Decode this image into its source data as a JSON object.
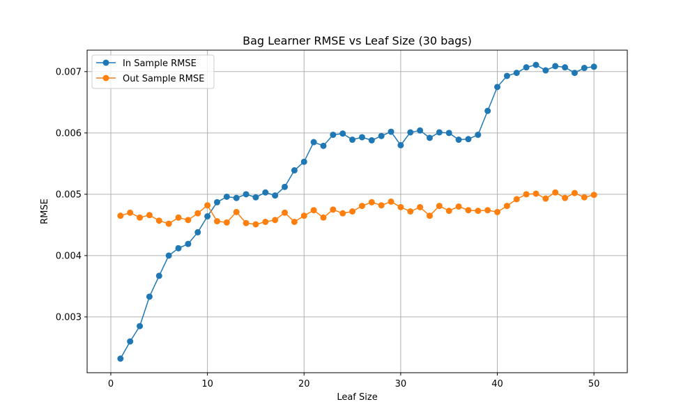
{
  "chart_data": {
    "type": "line",
    "title": "Bag Learner RMSE vs Leaf Size (30 bags)",
    "xlabel": "Leaf Size",
    "ylabel": "RMSE",
    "xlim": [
      -2.45,
      53.45
    ],
    "ylim": [
      0.00209,
      0.00735
    ],
    "xticks": [
      0,
      10,
      20,
      30,
      40,
      50
    ],
    "xtick_labels": [
      "0",
      "10",
      "20",
      "30",
      "40",
      "50"
    ],
    "yticks": [
      0.003,
      0.004,
      0.005,
      0.006,
      0.007
    ],
    "ytick_labels": [
      "0.003",
      "0.004",
      "0.005",
      "0.006",
      "0.007"
    ],
    "grid": true,
    "legend": "upper-left",
    "x": [
      1,
      2,
      3,
      4,
      5,
      6,
      7,
      8,
      9,
      10,
      11,
      12,
      13,
      14,
      15,
      16,
      17,
      18,
      19,
      20,
      21,
      22,
      23,
      24,
      25,
      26,
      27,
      28,
      29,
      30,
      31,
      32,
      33,
      34,
      35,
      36,
      37,
      38,
      39,
      40,
      41,
      42,
      43,
      44,
      45,
      46,
      47,
      48,
      49,
      50
    ],
    "series": [
      {
        "name": "In Sample RMSE",
        "color": "#1f77b4",
        "values": [
          0.00232,
          0.0026,
          0.00285,
          0.00333,
          0.00367,
          0.004,
          0.00412,
          0.00419,
          0.00438,
          0.00464,
          0.00487,
          0.00496,
          0.00494,
          0.005,
          0.00495,
          0.00503,
          0.00498,
          0.00512,
          0.00539,
          0.00553,
          0.00585,
          0.00579,
          0.00597,
          0.00599,
          0.00589,
          0.00593,
          0.00588,
          0.00595,
          0.00602,
          0.0058,
          0.00601,
          0.00604,
          0.00592,
          0.00601,
          0.006,
          0.00589,
          0.0059,
          0.00597,
          0.00636,
          0.00675,
          0.00693,
          0.00698,
          0.00707,
          0.00711,
          0.00702,
          0.00709,
          0.00707,
          0.00698,
          0.00706,
          0.00708
        ]
      },
      {
        "name": "Out Sample RMSE",
        "color": "#ff7f0e",
        "values": [
          0.00465,
          0.0047,
          0.00462,
          0.00466,
          0.00457,
          0.00452,
          0.00462,
          0.00458,
          0.00469,
          0.00482,
          0.00456,
          0.00454,
          0.00471,
          0.00453,
          0.00451,
          0.00455,
          0.00458,
          0.0047,
          0.00455,
          0.00465,
          0.00474,
          0.00462,
          0.00475,
          0.00469,
          0.00472,
          0.00481,
          0.00487,
          0.00482,
          0.00488,
          0.00479,
          0.00472,
          0.00479,
          0.00465,
          0.00481,
          0.00473,
          0.0048,
          0.00474,
          0.00473,
          0.00474,
          0.00471,
          0.00481,
          0.00492,
          0.005,
          0.00501,
          0.00493,
          0.00503,
          0.00494,
          0.00502,
          0.00495,
          0.00499
        ]
      }
    ]
  }
}
